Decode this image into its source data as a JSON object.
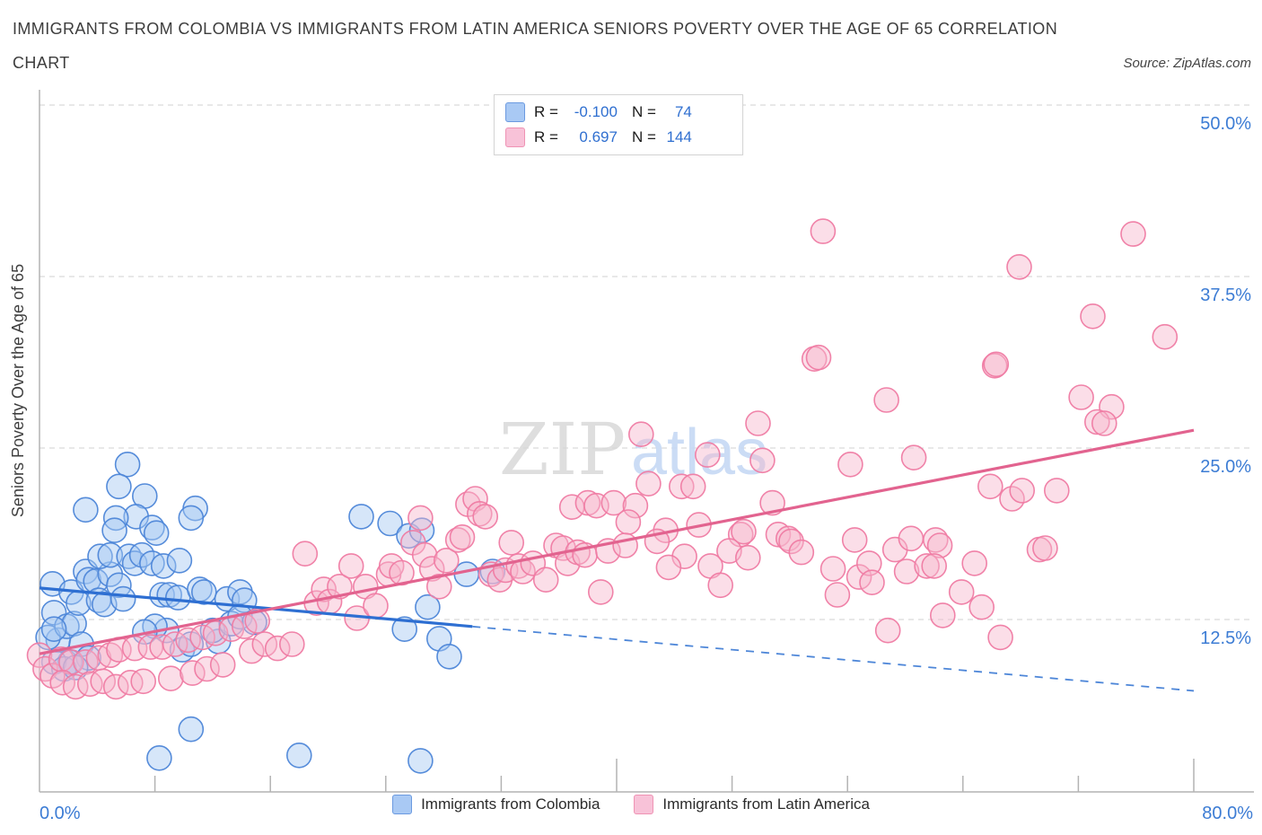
{
  "header": {
    "title_line1": "IMMIGRANTS FROM COLOMBIA VS IMMIGRANTS FROM LATIN AMERICA SENIORS POVERTY OVER THE AGE OF 65 CORRELATION",
    "title_line2": "CHART",
    "source": "Source: ZipAtlas.com"
  },
  "stats_box": {
    "rows": [
      {
        "series": "Immigrants from Colombia",
        "r_label": "R =",
        "r_value": "-0.100",
        "n_label": "N =",
        "n_value": "74"
      },
      {
        "series": "Immigrants from Latin America",
        "r_label": "R =",
        "r_value": "0.697",
        "n_label": "N =",
        "n_value": "144"
      }
    ]
  },
  "legend": {
    "items": [
      {
        "label": "Immigrants from Colombia"
      },
      {
        "label": "Immigrants from Latin America"
      }
    ]
  },
  "watermark": {
    "part1": "ZIP",
    "part2": "atlas"
  },
  "axes": {
    "y_label": "Seniors Poverty Over the Age of 65",
    "y_tick_labels": [
      "50.0%",
      "37.5%",
      "25.0%",
      "12.5%"
    ],
    "y_tick_values": [
      50,
      37.5,
      25,
      12.5
    ],
    "x_min_label": "0.0%",
    "x_max_label": "80.0%"
  },
  "colors": {
    "colombia_fill": "#a4c7f2",
    "colombia_stroke": "#4d86d8",
    "latin_fill": "#f7b6cd",
    "latin_stroke": "#ef7ba3",
    "trend_colombia": "#2e6fd2",
    "trend_latin": "#e2638f",
    "tick_label_blue": "#3c7cd4",
    "grid": "#d2d2d2"
  },
  "chart_data": {
    "type": "scatter",
    "title": "Immigrants from Colombia vs Immigrants from Latin America Seniors Poverty Over the Age of 65 Correlation Chart",
    "ylabel": "Seniors Poverty Over the Age of 65",
    "xlim": [
      0,
      80
    ],
    "ylim": [
      0,
      51.8
    ],
    "x_axis_unit": "%",
    "y_axis_unit": "%",
    "grid": "horizontal-dashed",
    "y_ticks": [
      12.5,
      25,
      37.5,
      50
    ],
    "x_ticks_minor": [
      8,
      16,
      24,
      32,
      48,
      56,
      64,
      72
    ],
    "x_ticks_major": [
      40,
      80
    ],
    "legend_position": "bottom-center",
    "series": [
      {
        "name": "Immigrants from Colombia",
        "r": -0.1,
        "n": 74,
        "points": [
          [
            6.1,
            23.8
          ],
          [
            5.5,
            22.2
          ],
          [
            7.3,
            21.5
          ],
          [
            3.2,
            20.5
          ],
          [
            6.7,
            20.0
          ],
          [
            5.3,
            19.9
          ],
          [
            5.2,
            19.0
          ],
          [
            7.8,
            19.2
          ],
          [
            8.1,
            18.8
          ],
          [
            10.8,
            20.6
          ],
          [
            10.5,
            19.9
          ],
          [
            22.3,
            20.0
          ],
          [
            0.9,
            15.1
          ],
          [
            1.0,
            13.0
          ],
          [
            1.3,
            11.0
          ],
          [
            0.6,
            11.2
          ],
          [
            1.9,
            12.0
          ],
          [
            2.4,
            12.2
          ],
          [
            2.2,
            14.5
          ],
          [
            2.7,
            13.7
          ],
          [
            3.2,
            16.0
          ],
          [
            3.4,
            15.4
          ],
          [
            3.9,
            15.3
          ],
          [
            2.9,
            10.7
          ],
          [
            3.4,
            9.7
          ],
          [
            2.1,
            9.4
          ],
          [
            1.0,
            9.4
          ],
          [
            1.7,
            8.9
          ],
          [
            2.5,
            9.0
          ],
          [
            4.1,
            13.9
          ],
          [
            4.5,
            13.6
          ],
          [
            4.9,
            15.8
          ],
          [
            4.2,
            17.1
          ],
          [
            4.9,
            17.2
          ],
          [
            6.2,
            17.1
          ],
          [
            6.6,
            16.6
          ],
          [
            7.1,
            17.2
          ],
          [
            7.8,
            16.6
          ],
          [
            8.6,
            16.4
          ],
          [
            9.7,
            16.8
          ],
          [
            5.5,
            15.0
          ],
          [
            5.8,
            14.0
          ],
          [
            8.5,
            14.3
          ],
          [
            9.0,
            14.3
          ],
          [
            9.6,
            14.1
          ],
          [
            11.1,
            14.7
          ],
          [
            11.4,
            14.5
          ],
          [
            13.0,
            14.0
          ],
          [
            13.9,
            14.5
          ],
          [
            14.2,
            13.9
          ],
          [
            8.8,
            11.7
          ],
          [
            8.0,
            12.0
          ],
          [
            7.3,
            11.6
          ],
          [
            9.9,
            10.3
          ],
          [
            10.5,
            10.7
          ],
          [
            12.4,
            10.9
          ],
          [
            12.0,
            11.7
          ],
          [
            13.3,
            12.2
          ],
          [
            13.9,
            12.7
          ],
          [
            14.9,
            12.3
          ],
          [
            10.5,
            4.5
          ],
          [
            8.3,
            2.4
          ],
          [
            18.0,
            2.6
          ],
          [
            26.4,
            2.2
          ],
          [
            24.3,
            19.5
          ],
          [
            25.6,
            18.6
          ],
          [
            26.5,
            19.0
          ],
          [
            29.6,
            15.8
          ],
          [
            31.4,
            16.0
          ],
          [
            26.9,
            13.4
          ],
          [
            25.3,
            11.8
          ],
          [
            27.7,
            11.1
          ],
          [
            28.4,
            9.8
          ],
          [
            1.0,
            11.8
          ]
        ]
      },
      {
        "name": "Immigrants from Latin America",
        "r": 0.697,
        "n": 144,
        "points": [
          [
            0.0,
            9.9
          ],
          [
            0.4,
            8.9
          ],
          [
            0.9,
            8.4
          ],
          [
            1.5,
            9.6
          ],
          [
            2.2,
            9.4
          ],
          [
            1.6,
            7.9
          ],
          [
            2.5,
            7.6
          ],
          [
            3.2,
            9.4
          ],
          [
            3.5,
            7.8
          ],
          [
            4.1,
            9.7
          ],
          [
            4.4,
            8.0
          ],
          [
            4.9,
            9.9
          ],
          [
            5.3,
            7.6
          ],
          [
            5.5,
            10.3
          ],
          [
            6.3,
            7.9
          ],
          [
            6.6,
            10.4
          ],
          [
            7.2,
            8.0
          ],
          [
            7.7,
            10.5
          ],
          [
            8.5,
            10.5
          ],
          [
            9.1,
            8.2
          ],
          [
            9.4,
            10.7
          ],
          [
            10.3,
            11.0
          ],
          [
            10.6,
            8.6
          ],
          [
            11.3,
            11.2
          ],
          [
            11.6,
            8.9
          ],
          [
            12.2,
            11.5
          ],
          [
            13.3,
            11.8
          ],
          [
            12.7,
            9.2
          ],
          [
            14.2,
            12.0
          ],
          [
            15.1,
            12.4
          ],
          [
            14.7,
            10.2
          ],
          [
            15.6,
            10.7
          ],
          [
            16.5,
            10.4
          ],
          [
            17.5,
            10.7
          ],
          [
            18.4,
            17.3
          ],
          [
            19.2,
            13.7
          ],
          [
            19.7,
            14.7
          ],
          [
            20.1,
            13.8
          ],
          [
            20.8,
            14.9
          ],
          [
            21.6,
            16.4
          ],
          [
            22.0,
            12.6
          ],
          [
            22.6,
            14.9
          ],
          [
            23.3,
            13.5
          ],
          [
            24.2,
            15.8
          ],
          [
            24.4,
            16.4
          ],
          [
            25.1,
            15.9
          ],
          [
            25.9,
            18.1
          ],
          [
            26.4,
            19.9
          ],
          [
            26.7,
            17.2
          ],
          [
            27.2,
            16.2
          ],
          [
            27.7,
            14.9
          ],
          [
            28.2,
            16.8
          ],
          [
            29.0,
            18.3
          ],
          [
            29.3,
            18.5
          ],
          [
            29.7,
            20.9
          ],
          [
            30.2,
            21.3
          ],
          [
            30.5,
            20.2
          ],
          [
            30.9,
            20.0
          ],
          [
            31.3,
            15.8
          ],
          [
            31.9,
            15.4
          ],
          [
            32.3,
            16.1
          ],
          [
            32.7,
            18.1
          ],
          [
            33.2,
            16.4
          ],
          [
            33.5,
            16.0
          ],
          [
            34.2,
            16.6
          ],
          [
            35.1,
            15.4
          ],
          [
            35.8,
            17.9
          ],
          [
            36.3,
            17.7
          ],
          [
            36.6,
            16.6
          ],
          [
            36.9,
            20.7
          ],
          [
            37.3,
            17.4
          ],
          [
            37.8,
            17.2
          ],
          [
            38.0,
            21.0
          ],
          [
            38.6,
            20.8
          ],
          [
            39.4,
            17.5
          ],
          [
            39.8,
            21.0
          ],
          [
            41.7,
            26.0
          ],
          [
            46.3,
            24.5
          ],
          [
            49.8,
            26.8
          ],
          [
            50.1,
            24.1
          ],
          [
            56.2,
            23.8
          ],
          [
            60.6,
            24.3
          ],
          [
            58.7,
            28.5
          ],
          [
            53.7,
            31.5
          ],
          [
            42.2,
            22.4
          ],
          [
            44.5,
            22.2
          ],
          [
            45.3,
            22.2
          ],
          [
            41.3,
            20.8
          ],
          [
            40.8,
            19.6
          ],
          [
            43.4,
            19.0
          ],
          [
            42.8,
            18.2
          ],
          [
            40.6,
            17.9
          ],
          [
            45.7,
            19.4
          ],
          [
            48.6,
            18.7
          ],
          [
            48.8,
            18.9
          ],
          [
            51.2,
            18.7
          ],
          [
            51.9,
            18.4
          ],
          [
            52.1,
            18.2
          ],
          [
            52.8,
            17.4
          ],
          [
            47.8,
            17.5
          ],
          [
            49.1,
            17.0
          ],
          [
            44.7,
            17.1
          ],
          [
            43.6,
            16.3
          ],
          [
            46.5,
            16.4
          ],
          [
            47.2,
            15.0
          ],
          [
            55.0,
            16.2
          ],
          [
            56.5,
            18.3
          ],
          [
            56.8,
            15.6
          ],
          [
            57.5,
            16.6
          ],
          [
            57.7,
            15.2
          ],
          [
            59.3,
            17.6
          ],
          [
            60.4,
            18.4
          ],
          [
            60.1,
            16.0
          ],
          [
            61.5,
            16.4
          ],
          [
            62.1,
            18.3
          ],
          [
            55.3,
            14.3
          ],
          [
            58.8,
            11.7
          ],
          [
            66.2,
            31.0
          ],
          [
            72.2,
            28.7
          ],
          [
            74.3,
            28.0
          ],
          [
            73.3,
            26.9
          ],
          [
            73.8,
            26.8
          ],
          [
            65.9,
            22.2
          ],
          [
            67.4,
            21.3
          ],
          [
            68.1,
            21.9
          ],
          [
            70.5,
            21.9
          ],
          [
            62.4,
            17.9
          ],
          [
            62.0,
            16.4
          ],
          [
            64.8,
            16.6
          ],
          [
            69.3,
            17.6
          ],
          [
            69.7,
            17.7
          ],
          [
            63.9,
            14.5
          ],
          [
            65.3,
            13.4
          ],
          [
            62.6,
            12.8
          ],
          [
            66.6,
            11.2
          ],
          [
            54.3,
            40.8
          ],
          [
            75.8,
            40.6
          ],
          [
            67.9,
            38.2
          ],
          [
            73.0,
            34.6
          ],
          [
            78.0,
            33.1
          ],
          [
            54.0,
            31.6
          ],
          [
            66.3,
            31.1
          ],
          [
            50.8,
            21.0
          ],
          [
            38.9,
            14.5
          ]
        ]
      }
    ],
    "trend_lines": [
      {
        "series": "Immigrants from Colombia",
        "start": [
          0,
          14.8
        ],
        "end": [
          80,
          7.3
        ],
        "solid_until_x": 30,
        "style": "solid-then-dashed"
      },
      {
        "series": "Immigrants from Latin America",
        "start": [
          0,
          10.0
        ],
        "end": [
          80,
          26.3
        ],
        "style": "solid"
      }
    ]
  }
}
